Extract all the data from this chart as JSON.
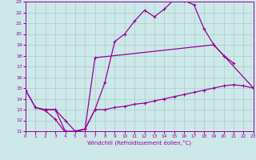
{
  "xlabel": "Windchill (Refroidissement éolien,°C)",
  "bg_color": "#cce8e8",
  "grid_color": "#aacccc",
  "line_color": "#990099",
  "xlim": [
    0,
    23
  ],
  "ylim": [
    11,
    23
  ],
  "xticks": [
    0,
    1,
    2,
    3,
    4,
    5,
    6,
    7,
    8,
    9,
    10,
    11,
    12,
    13,
    14,
    15,
    16,
    17,
    18,
    19,
    20,
    21,
    22,
    23
  ],
  "yticks": [
    11,
    12,
    13,
    14,
    15,
    16,
    17,
    18,
    19,
    20,
    21,
    22,
    23
  ],
  "line1_x": [
    0,
    1,
    2,
    3,
    4,
    5,
    6,
    7,
    8,
    9,
    10,
    11,
    12,
    13,
    14,
    15,
    16,
    17,
    18,
    19,
    20,
    21
  ],
  "line1_y": [
    14.8,
    13.2,
    12.9,
    12.1,
    10.9,
    10.9,
    11.2,
    13.0,
    15.5,
    19.3,
    20.0,
    21.2,
    22.2,
    21.6,
    22.3,
    23.2,
    23.1,
    22.7,
    20.5,
    19.0,
    18.0,
    17.3
  ],
  "line2_x": [
    0,
    1,
    2,
    3,
    4,
    5,
    6,
    7,
    8,
    9,
    10,
    11,
    12,
    13,
    14,
    15,
    16,
    17,
    18,
    19,
    20,
    21,
    22,
    23
  ],
  "line2_y": [
    14.8,
    13.2,
    13.0,
    13.0,
    11.0,
    11.0,
    11.2,
    13.0,
    13.0,
    13.2,
    13.3,
    13.5,
    13.6,
    13.8,
    14.0,
    14.2,
    14.4,
    14.6,
    14.8,
    15.0,
    15.2,
    15.3,
    15.2,
    15.0
  ],
  "line3_x": [
    2,
    3,
    4,
    5,
    6,
    7,
    19,
    20,
    23
  ],
  "line3_y": [
    13.0,
    13.0,
    12.0,
    11.0,
    11.2,
    17.8,
    19.0,
    18.0,
    15.0
  ]
}
